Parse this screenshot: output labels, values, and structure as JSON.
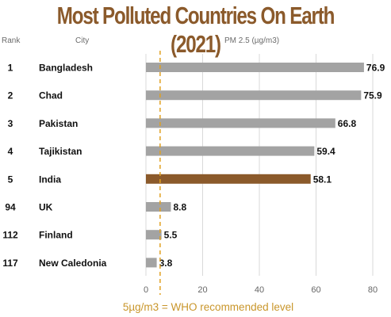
{
  "chart_data": {
    "type": "bar",
    "orientation": "horizontal",
    "title": "Most Polluted Countries On Earth (2021)",
    "columns": {
      "rank": "Rank",
      "city": "City",
      "metric": "PM 2.5 (µg/m3)"
    },
    "rows": [
      {
        "rank": "1",
        "category": "Bangladesh",
        "value": 76.9,
        "label": "76.9",
        "highlight": false
      },
      {
        "rank": "2",
        "category": "Chad",
        "value": 75.9,
        "label": "75.9",
        "highlight": false
      },
      {
        "rank": "3",
        "category": "Pakistan",
        "value": 66.8,
        "label": "66.8",
        "highlight": false
      },
      {
        "rank": "4",
        "category": "Tajikistan",
        "value": 59.4,
        "label": "59.4",
        "highlight": false
      },
      {
        "rank": "5",
        "category": "India",
        "value": 58.1,
        "label": "58.1",
        "highlight": true
      },
      {
        "rank": "94",
        "category": "UK",
        "value": 8.8,
        "label": "8.8",
        "highlight": false
      },
      {
        "rank": "112",
        "category": "Finland",
        "value": 5.5,
        "label": "5.5",
        "highlight": false
      },
      {
        "rank": "117",
        "category": "New Caledonia",
        "value": 3.8,
        "label": "3.8",
        "highlight": false
      }
    ],
    "xlim": [
      0,
      80
    ],
    "xticks": [
      0,
      20,
      40,
      60,
      80
    ],
    "reference_line": {
      "value": 5,
      "label": "5µg/m3 = WHO recommended level",
      "style": "dashed",
      "color": "#e0a020"
    },
    "grid": true,
    "colors": {
      "bar": "#a3a3a3",
      "highlight": "#8b5a2b",
      "title": "#8b5a2b",
      "grid": "#d9d9d9"
    }
  }
}
